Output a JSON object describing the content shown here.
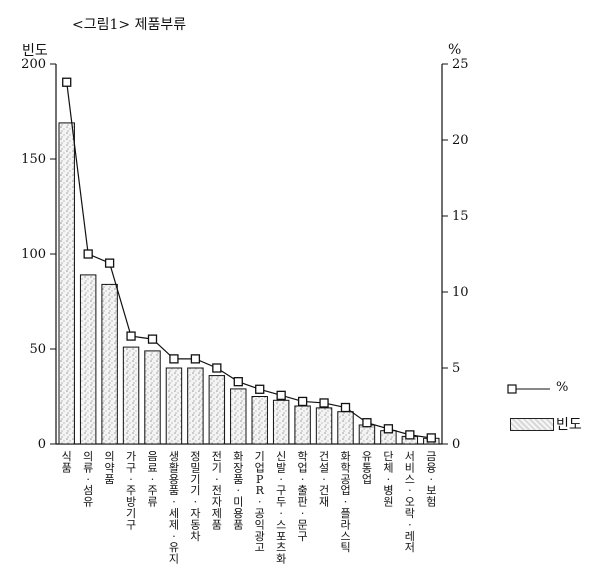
{
  "figure": {
    "title": "<그림1> 제품부류"
  },
  "chart_data": {
    "type": "bar",
    "title": "<그림1> 제품부류",
    "ylabel": "빈도",
    "y2label": "%",
    "ylim": [
      0,
      200
    ],
    "yticks": [
      0,
      50,
      100,
      150,
      200
    ],
    "y2lim": [
      0,
      25
    ],
    "y2ticks": [
      0,
      5,
      10,
      15,
      20,
      25
    ],
    "grid": false,
    "legend": "right",
    "categories": [
      "식품",
      "의류·섬유",
      "의약품",
      "가구·주방기구",
      "음료·주류",
      "생활용품·세제·유지",
      "정밀기기·자동차",
      "전기·전자제품",
      "화장품·미용품",
      "기업PR·공익광고",
      "신발·구두·스포츠화",
      "학업·출판·문구",
      "건설·건재",
      "화학공업·플라스틱",
      "유통업",
      "단체·병원",
      "서비스·오락·레저",
      "금융·보험"
    ],
    "series": [
      {
        "name": "빈도",
        "type": "bar",
        "axis": "left",
        "values": [
          169,
          89,
          84,
          51,
          49,
          40,
          40,
          36,
          29,
          25,
          23,
          20,
          19,
          17,
          10,
          7,
          4,
          3
        ]
      },
      {
        "name": "%",
        "type": "line",
        "axis": "right",
        "values": [
          23.8,
          12.5,
          11.9,
          7.1,
          6.9,
          5.6,
          5.6,
          5.0,
          4.1,
          3.6,
          3.2,
          2.8,
          2.7,
          2.4,
          1.4,
          1.0,
          0.6,
          0.4
        ]
      }
    ]
  }
}
